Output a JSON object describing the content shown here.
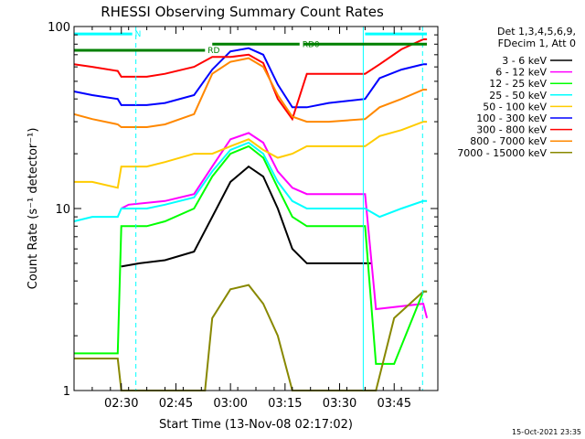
{
  "chart_data": {
    "type": "line",
    "title": "RHESSI Observing Summary Count Rates",
    "xlabel": "Start Time (13-Nov-08 02:17:02)",
    "ylabel": "Count Rate (s⁻¹ detector⁻¹)",
    "yscale": "log",
    "ylim": [
      1,
      100
    ],
    "xlim_minutes": [
      0,
      100
    ],
    "x_ticks": [
      {
        "t": 13,
        "label": "02:30"
      },
      {
        "t": 28,
        "label": "02:45"
      },
      {
        "t": 43,
        "label": "03:00"
      },
      {
        "t": 58,
        "label": "03:15"
      },
      {
        "t": 73,
        "label": "03:30"
      },
      {
        "t": 88,
        "label": "03:45"
      }
    ],
    "y_ticks": [
      {
        "v": 1,
        "label": "1"
      },
      {
        "v": 10,
        "label": "10"
      },
      {
        "v": 100,
        "label": "100"
      }
    ],
    "legend_header": [
      "Det 1,3,4,5,6,9,",
      "FDecim 1, Att 0"
    ],
    "series": [
      {
        "name": "3 - 6 keV",
        "color": "#000000",
        "points": [
          [
            13,
            4.8
          ],
          [
            18,
            5.0
          ],
          [
            25,
            5.2
          ],
          [
            33,
            5.8
          ],
          [
            38,
            9
          ],
          [
            43,
            14
          ],
          [
            48,
            17
          ],
          [
            52,
            15
          ],
          [
            56,
            10
          ],
          [
            60,
            6
          ],
          [
            64,
            5
          ],
          [
            70,
            5
          ],
          [
            80,
            5
          ],
          [
            82,
            5.0
          ]
        ]
      },
      {
        "name": "6 - 12 keV",
        "color": "#ff00ff",
        "points": [
          [
            13,
            10
          ],
          [
            15,
            10.5
          ],
          [
            25,
            11
          ],
          [
            33,
            12
          ],
          [
            38,
            17
          ],
          [
            43,
            24
          ],
          [
            48,
            26
          ],
          [
            52,
            23
          ],
          [
            56,
            16
          ],
          [
            60,
            13
          ],
          [
            64,
            12
          ],
          [
            70,
            12
          ],
          [
            80,
            12
          ],
          [
            83,
            2.8
          ],
          [
            96,
            3.0
          ],
          [
            97,
            2.5
          ]
        ]
      },
      {
        "name": "12 - 25 keV",
        "color": "#00ff00",
        "points": [
          [
            0,
            1.6
          ],
          [
            5,
            1.6
          ],
          [
            12,
            1.6
          ],
          [
            13,
            8
          ],
          [
            20,
            8
          ],
          [
            25,
            8.5
          ],
          [
            33,
            10
          ],
          [
            38,
            15
          ],
          [
            43,
            20
          ],
          [
            48,
            22
          ],
          [
            52,
            19
          ],
          [
            56,
            13
          ],
          [
            60,
            9
          ],
          [
            64,
            8
          ],
          [
            70,
            8
          ],
          [
            80,
            8
          ],
          [
            83,
            1.4
          ],
          [
            88,
            1.4
          ],
          [
            96,
            3.5
          ],
          [
            97,
            3.5
          ]
        ]
      },
      {
        "name": "25 - 50 keV",
        "color": "#00ffff",
        "points": [
          [
            0,
            8.5
          ],
          [
            5,
            9
          ],
          [
            12,
            9
          ],
          [
            13,
            10
          ],
          [
            20,
            10
          ],
          [
            25,
            10.5
          ],
          [
            33,
            11.5
          ],
          [
            38,
            16
          ],
          [
            43,
            21
          ],
          [
            48,
            23
          ],
          [
            52,
            20
          ],
          [
            56,
            14
          ],
          [
            60,
            11
          ],
          [
            64,
            10
          ],
          [
            70,
            10
          ],
          [
            80,
            10
          ],
          [
            84,
            9
          ],
          [
            90,
            10
          ],
          [
            96,
            11
          ],
          [
            97,
            11
          ]
        ]
      },
      {
        "name": "50 - 100 keV",
        "color": "#ffcc00",
        "points": [
          [
            0,
            14
          ],
          [
            5,
            14
          ],
          [
            12,
            13
          ],
          [
            13,
            17
          ],
          [
            20,
            17
          ],
          [
            25,
            18
          ],
          [
            33,
            20
          ],
          [
            38,
            20
          ],
          [
            43,
            22
          ],
          [
            48,
            24
          ],
          [
            52,
            21
          ],
          [
            56,
            19
          ],
          [
            60,
            20
          ],
          [
            64,
            22
          ],
          [
            70,
            22
          ],
          [
            80,
            22
          ],
          [
            84,
            25
          ],
          [
            90,
            27
          ],
          [
            96,
            30
          ],
          [
            97,
            30
          ]
        ]
      },
      {
        "name": "100 - 300 keV",
        "color": "#0000ff",
        "points": [
          [
            0,
            44
          ],
          [
            5,
            42
          ],
          [
            12,
            40
          ],
          [
            13,
            37
          ],
          [
            20,
            37
          ],
          [
            25,
            38
          ],
          [
            33,
            42
          ],
          [
            38,
            58
          ],
          [
            43,
            73
          ],
          [
            48,
            76
          ],
          [
            52,
            70
          ],
          [
            56,
            48
          ],
          [
            60,
            36
          ],
          [
            64,
            36
          ],
          [
            70,
            38
          ],
          [
            80,
            40
          ],
          [
            84,
            52
          ],
          [
            90,
            58
          ],
          [
            96,
            62
          ],
          [
            97,
            62
          ]
        ]
      },
      {
        "name": "300 - 800 keV",
        "color": "#ff0000",
        "points": [
          [
            0,
            62
          ],
          [
            5,
            60
          ],
          [
            12,
            57
          ],
          [
            13,
            53
          ],
          [
            20,
            53
          ],
          [
            25,
            55
          ],
          [
            33,
            60
          ],
          [
            38,
            68
          ],
          [
            43,
            68
          ],
          [
            48,
            70
          ],
          [
            52,
            63
          ],
          [
            56,
            40
          ],
          [
            60,
            31
          ],
          [
            64,
            55
          ],
          [
            70,
            55
          ],
          [
            80,
            55
          ],
          [
            84,
            62
          ],
          [
            90,
            75
          ],
          [
            96,
            85
          ],
          [
            97,
            85
          ]
        ]
      },
      {
        "name": "800 - 7000 keV",
        "color": "#ff8800",
        "points": [
          [
            0,
            33
          ],
          [
            5,
            31
          ],
          [
            12,
            29
          ],
          [
            13,
            28
          ],
          [
            20,
            28
          ],
          [
            25,
            29
          ],
          [
            33,
            33
          ],
          [
            38,
            55
          ],
          [
            43,
            64
          ],
          [
            48,
            67
          ],
          [
            52,
            60
          ],
          [
            56,
            42
          ],
          [
            60,
            32
          ],
          [
            64,
            30
          ],
          [
            70,
            30
          ],
          [
            80,
            31
          ],
          [
            84,
            36
          ],
          [
            90,
            40
          ],
          [
            96,
            45
          ],
          [
            97,
            45
          ]
        ]
      },
      {
        "name": "7000 - 15000 keV",
        "color": "#888800",
        "points": [
          [
            0,
            1.5
          ],
          [
            5,
            1.5
          ],
          [
            12,
            1.5
          ],
          [
            13,
            1.0
          ],
          [
            36,
            1.0
          ],
          [
            38,
            2.5
          ],
          [
            43,
            3.6
          ],
          [
            48,
            3.8
          ],
          [
            52,
            3.0
          ],
          [
            56,
            2.0
          ],
          [
            60,
            1.0
          ],
          [
            83,
            1.0
          ],
          [
            88,
            2.5
          ],
          [
            96,
            3.5
          ],
          [
            97,
            3.5
          ]
        ]
      }
    ],
    "annotations": [
      {
        "label": "N",
        "color": "#00ffff",
        "x1": 0,
        "x2": 16,
        "y": 91
      },
      {
        "label": "RD0",
        "color": "#008000",
        "x1": 38,
        "x2": 62,
        "y": 80
      },
      {
        "label": "RD",
        "color": "#008000",
        "x1": 0,
        "x2": 36,
        "y": 74
      },
      {
        "label": "",
        "color": "#008000",
        "x1": 63,
        "x2": 97,
        "y": 80
      },
      {
        "label": "",
        "color": "#00ffff",
        "x1": 80,
        "x2": 97,
        "y": 91
      }
    ],
    "vlines": [
      {
        "t": 17,
        "color": "#00ffff",
        "style": "dashed"
      },
      {
        "t": 79.5,
        "color": "#00ffff",
        "style": "solid"
      },
      {
        "t": 95.8,
        "color": "#00ffff",
        "style": "dashed"
      }
    ],
    "footer_date": "15-Oct-2021 23:35",
    "grid": false
  }
}
